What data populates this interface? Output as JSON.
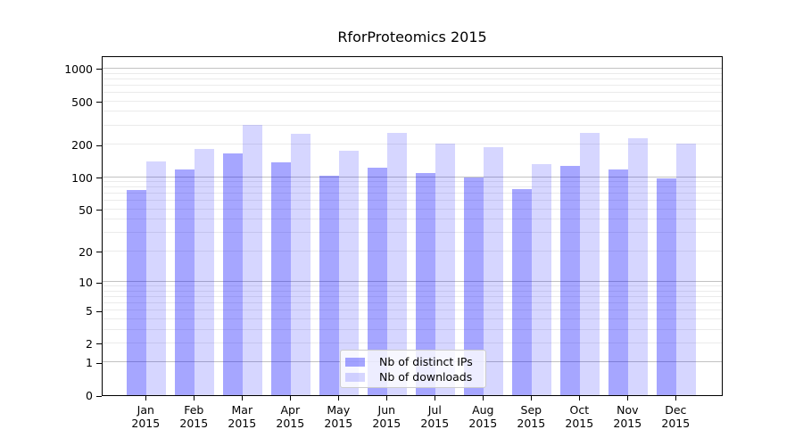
{
  "chart_data": {
    "type": "bar",
    "title": "RforProteomics 2015",
    "categories": [
      "Jan",
      "Feb",
      "Mar",
      "Apr",
      "May",
      "Jun",
      "Jul",
      "Aug",
      "Sep",
      "Oct",
      "Nov",
      "Dec"
    ],
    "year_label": "2015",
    "series": [
      {
        "name": "Nb of distinct IPs",
        "color": "rgba(0,0,255,0.35)",
        "values": [
          76,
          118,
          166,
          137,
          102,
          123,
          109,
          100,
          78,
          127,
          117,
          98
        ]
      },
      {
        "name": "Nb of downloads",
        "color": "rgba(0,0,255,0.16)",
        "values": [
          139,
          181,
          306,
          251,
          176,
          257,
          203,
          188,
          133,
          257,
          227,
          204
        ]
      }
    ],
    "yscale": "log1p",
    "ylim": [
      0,
      1333
    ],
    "yticks": [
      0,
      1,
      2,
      5,
      10,
      20,
      50,
      100,
      200,
      500,
      1000
    ],
    "major_gridlines": [
      1,
      10,
      100,
      1000
    ],
    "minor_gridlines": [
      2,
      3,
      4,
      5,
      6,
      7,
      8,
      9,
      20,
      30,
      40,
      50,
      60,
      70,
      80,
      90,
      200,
      300,
      400,
      500,
      600,
      700,
      800,
      900
    ],
    "grid": true,
    "legend_position": "lower center"
  },
  "colors": {
    "series_dark_hex": "#a6a6ff",
    "series_light_hex": "#d6d6ff",
    "major_grid": "#c2c2c2",
    "minor_grid": "#ebebeb",
    "axis": "#000000",
    "legend_border": "#cccccc"
  }
}
